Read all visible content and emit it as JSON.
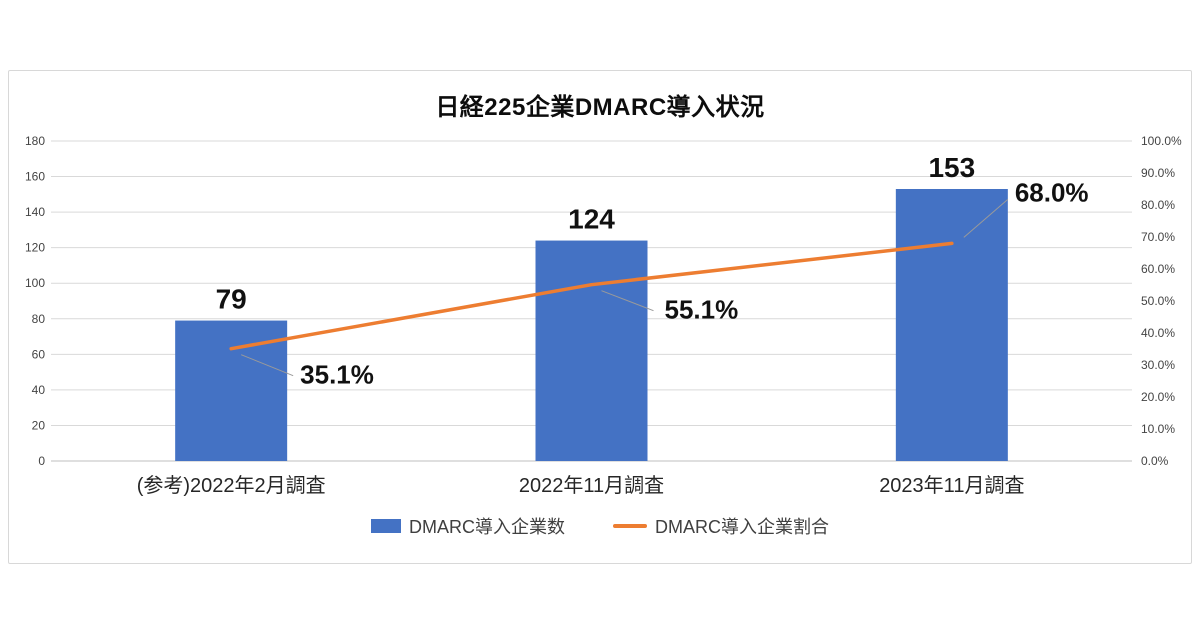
{
  "colors": {
    "bar": "#4472C4",
    "line": "#ED7D31",
    "grid": "#d9d9d9",
    "axis": "#bfbfbf",
    "tick_text": "#444444",
    "category_text": "#262626",
    "data_label": "#111111",
    "leader": "#9a9a9a"
  },
  "chart_data": {
    "type": "bar",
    "combo": "bar+line",
    "title": "日経225企業DMARC導入状況",
    "categories": [
      "(参考)2022年2月調査",
      "2022年11月調査",
      "2023年11月調査"
    ],
    "series": [
      {
        "name": "DMARC導入企業数",
        "type": "bar",
        "axis": "left",
        "color": "#4472C4",
        "values": [
          79,
          124,
          153
        ],
        "labels": [
          "79",
          "124",
          "153"
        ]
      },
      {
        "name": "DMARC導入企業割合",
        "type": "line",
        "axis": "right",
        "color": "#ED7D31",
        "values": [
          35.1,
          55.1,
          68.0
        ],
        "labels": [
          "35.1%",
          "55.1%",
          "68.0%"
        ]
      }
    ],
    "left_axis": {
      "min": 0,
      "max": 180,
      "step": 20,
      "ticks": [
        "0",
        "20",
        "40",
        "60",
        "80",
        "100",
        "120",
        "140",
        "160",
        "180"
      ]
    },
    "right_axis": {
      "min": 0,
      "max": 100,
      "step": 10,
      "ticks": [
        "0.0%",
        "10.0%",
        "20.0%",
        "30.0%",
        "40.0%",
        "50.0%",
        "60.0%",
        "70.0%",
        "80.0%",
        "90.0%",
        "100.0%"
      ]
    },
    "grid": true,
    "legend_position": "bottom"
  }
}
